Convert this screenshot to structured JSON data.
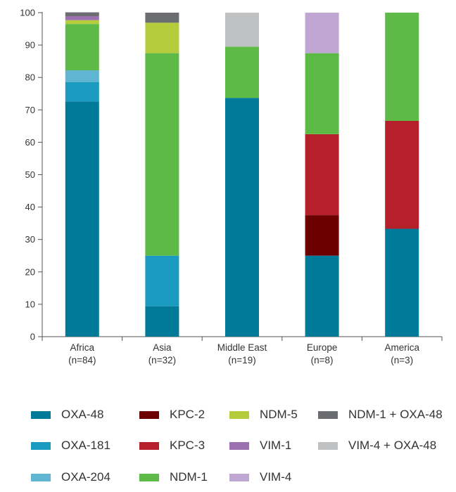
{
  "chart_data": {
    "type": "bar",
    "stacked": true,
    "categories": [
      "Africa",
      "Asia",
      "Middle East",
      "Europe",
      "America"
    ],
    "category_counts": [
      "(n=84)",
      "(n=32)",
      "(n=19)",
      "(n=8)",
      "(n=3)"
    ],
    "ylim": [
      0,
      100
    ],
    "yticks": [
      0,
      10,
      20,
      30,
      40,
      50,
      60,
      70,
      80,
      90,
      100
    ],
    "title": "",
    "xlabel": "",
    "ylabel": "",
    "grid": false,
    "legend_position": "bottom",
    "series": [
      {
        "name": "OXA-48",
        "color": "#007a99",
        "values": [
          72.6,
          9.4,
          73.7,
          25.0,
          33.3
        ]
      },
      {
        "name": "OXA-181",
        "color": "#1a9bbf",
        "values": [
          6.0,
          15.6,
          0,
          0,
          0
        ]
      },
      {
        "name": "OXA-204",
        "color": "#5fb5d2",
        "values": [
          3.6,
          0,
          0,
          0,
          0
        ]
      },
      {
        "name": "KPC-2",
        "color": "#6b0000",
        "values": [
          0,
          0,
          0,
          12.5,
          0
        ]
      },
      {
        "name": "KPC-3",
        "color": "#b5202a",
        "values": [
          0,
          0,
          0,
          25.0,
          33.3
        ]
      },
      {
        "name": "NDM-1",
        "color": "#5dba47",
        "values": [
          14.3,
          62.5,
          15.8,
          25.0,
          33.4
        ]
      },
      {
        "name": "NDM-5",
        "color": "#b5cd3c",
        "values": [
          1.2,
          9.4,
          0,
          0,
          0
        ]
      },
      {
        "name": "VIM-1",
        "color": "#9b6fb0",
        "values": [
          1.2,
          0,
          0,
          0,
          0
        ]
      },
      {
        "name": "VIM-4",
        "color": "#c0a6d3",
        "values": [
          0,
          0,
          0,
          12.5,
          0
        ]
      },
      {
        "name": "NDM-1 + OXA-48",
        "color": "#6b6d70",
        "values": [
          1.2,
          3.1,
          0,
          0,
          0
        ]
      },
      {
        "name": "VIM-4 + OXA-48",
        "color": "#c0c1c3",
        "values": [
          0,
          0,
          10.5,
          0,
          0
        ]
      }
    ]
  },
  "legend_order": [
    "OXA-48",
    "KPC-2",
    "NDM-5",
    "NDM-1 + OXA-48",
    "OXA-181",
    "KPC-3",
    "VIM-1",
    "VIM-4 + OXA-48",
    "OXA-204",
    "NDM-1",
    "VIM-4"
  ]
}
